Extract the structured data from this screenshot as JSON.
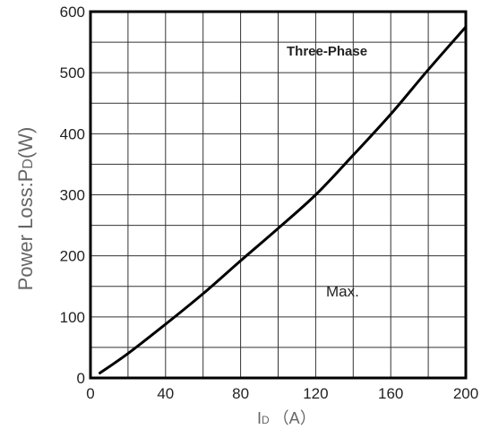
{
  "chart_data": {
    "type": "line",
    "title": "",
    "xlabel": {
      "main": "I",
      "sub": "D",
      "unit": "（A）"
    },
    "ylabel": {
      "main": "Power Loss:P",
      "sub": "D",
      "unit": "(W)"
    },
    "xlim": [
      0,
      200
    ],
    "ylim": [
      0,
      600
    ],
    "x_ticks": [
      0,
      40,
      80,
      120,
      160,
      200
    ],
    "y_ticks": [
      0,
      100,
      200,
      300,
      400,
      500,
      600
    ],
    "x_grid_step": 20,
    "y_grid_step": 50,
    "grid": true,
    "annotations": {
      "series_note": "Three-Phase",
      "curve_label": "Max."
    },
    "series": [
      {
        "x": [
          5,
          20,
          40,
          60,
          80,
          100,
          120,
          140,
          160,
          180,
          200
        ],
        "y": [
          8,
          40,
          88,
          138,
          192,
          245,
          300,
          365,
          432,
          505,
          575
        ]
      }
    ],
    "colors": {
      "line": "#000000",
      "grid": "#333333",
      "frame": "#000000"
    }
  }
}
